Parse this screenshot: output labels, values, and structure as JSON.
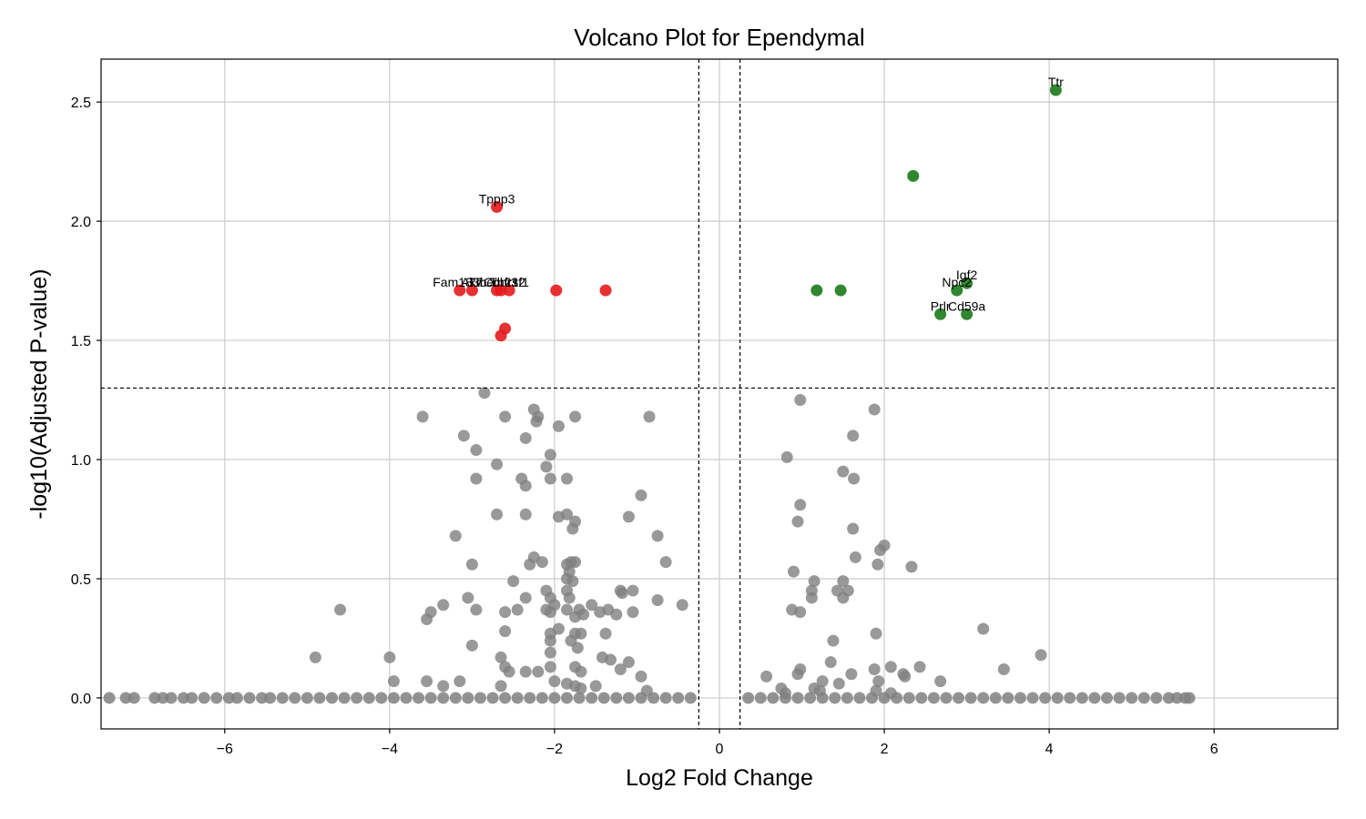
{
  "chart_data": {
    "type": "scatter",
    "title": "Volcano Plot for Ependymal",
    "xlabel": "Log2 Fold Change",
    "ylabel": "-log10(Adjusted P-value)",
    "xlim": [
      -7.5,
      7.5
    ],
    "ylim": [
      -0.13,
      2.68
    ],
    "xticks": [
      -6,
      -4,
      -2,
      0,
      2,
      4,
      6
    ],
    "xtick_labels": [
      "−6",
      "−4",
      "−2",
      "0",
      "2",
      "4",
      "6"
    ],
    "yticks": [
      0.0,
      0.5,
      1.0,
      1.5,
      2.0,
      2.5
    ],
    "ytick_labels": [
      "0.0",
      "0.5",
      "1.0",
      "1.5",
      "2.0",
      "2.5"
    ],
    "grid": true,
    "thresholds": {
      "log2fc": [
        -0.25,
        0.25
      ],
      "neg_log10_p": 1.3
    },
    "colors": {
      "down": "#e41a1c",
      "up": "#1a7a1a",
      "ns": "#808080",
      "threshold_line": "#000000"
    },
    "series": [
      {
        "key": "down",
        "points": [
          {
            "x": -2.7,
            "y": 2.06,
            "label": "Tppp3"
          },
          {
            "x": -3.15,
            "y": 1.71,
            "label": "Fam183b"
          },
          {
            "x": -3.0,
            "y": 1.71,
            "label": "Ak7"
          },
          {
            "x": -2.7,
            "y": 1.71,
            "label": "Tmem212"
          },
          {
            "x": -2.65,
            "y": 1.71,
            "label": "Cdhr3"
          },
          {
            "x": -2.55,
            "y": 1.71,
            "label": "Tnfrsf1"
          },
          {
            "x": -1.98,
            "y": 1.71
          },
          {
            "x": -1.38,
            "y": 1.71
          },
          {
            "x": -2.6,
            "y": 1.55
          },
          {
            "x": -2.65,
            "y": 1.52
          }
        ]
      },
      {
        "key": "up",
        "points": [
          {
            "x": 4.08,
            "y": 2.55,
            "label": "Ttr"
          },
          {
            "x": 2.35,
            "y": 2.19
          },
          {
            "x": 1.18,
            "y": 1.71
          },
          {
            "x": 1.47,
            "y": 1.71
          },
          {
            "x": 3.0,
            "y": 1.74,
            "label": "Igf2"
          },
          {
            "x": 2.88,
            "y": 1.71,
            "label": "Npc2"
          },
          {
            "x": 2.68,
            "y": 1.61,
            "label": "Prlr"
          },
          {
            "x": 3.0,
            "y": 1.61,
            "label": "Cd59a"
          }
        ]
      },
      {
        "key": "ns",
        "points": [
          {
            "x": -2.85,
            "y": 1.28
          },
          {
            "x": -3.6,
            "y": 1.18
          },
          {
            "x": -3.1,
            "y": 1.1
          },
          {
            "x": -2.95,
            "y": 1.04
          },
          {
            "x": -2.6,
            "y": 1.18
          },
          {
            "x": -2.25,
            "y": 1.21
          },
          {
            "x": -2.2,
            "y": 1.18
          },
          {
            "x": -2.22,
            "y": 1.16
          },
          {
            "x": -2.35,
            "y": 1.09
          },
          {
            "x": -1.95,
            "y": 1.14
          },
          {
            "x": -1.75,
            "y": 1.18
          },
          {
            "x": -2.05,
            "y": 1.02
          },
          {
            "x": -2.1,
            "y": 0.97
          },
          {
            "x": -2.7,
            "y": 0.98
          },
          {
            "x": -2.95,
            "y": 0.92
          },
          {
            "x": -2.4,
            "y": 0.92
          },
          {
            "x": -2.35,
            "y": 0.89
          },
          {
            "x": -2.05,
            "y": 0.92
          },
          {
            "x": -1.85,
            "y": 0.92
          },
          {
            "x": -0.85,
            "y": 1.18
          },
          {
            "x": -0.95,
            "y": 0.85
          },
          {
            "x": -2.7,
            "y": 0.77
          },
          {
            "x": -2.35,
            "y": 0.77
          },
          {
            "x": -1.95,
            "y": 0.76
          },
          {
            "x": -1.85,
            "y": 0.77
          },
          {
            "x": -1.75,
            "y": 0.74
          },
          {
            "x": -1.78,
            "y": 0.71
          },
          {
            "x": -1.1,
            "y": 0.76
          },
          {
            "x": -3.2,
            "y": 0.68
          },
          {
            "x": -0.75,
            "y": 0.68
          },
          {
            "x": -0.65,
            "y": 0.57
          },
          {
            "x": -3.0,
            "y": 0.56
          },
          {
            "x": -2.25,
            "y": 0.59
          },
          {
            "x": -2.15,
            "y": 0.57
          },
          {
            "x": -2.3,
            "y": 0.56
          },
          {
            "x": -1.85,
            "y": 0.56
          },
          {
            "x": -1.8,
            "y": 0.57
          },
          {
            "x": -1.75,
            "y": 0.57
          },
          {
            "x": -1.82,
            "y": 0.53
          },
          {
            "x": -1.85,
            "y": 0.5
          },
          {
            "x": -1.78,
            "y": 0.49
          },
          {
            "x": -2.5,
            "y": 0.49
          },
          {
            "x": -2.1,
            "y": 0.45
          },
          {
            "x": -1.85,
            "y": 0.45
          },
          {
            "x": -1.2,
            "y": 0.45
          },
          {
            "x": -1.05,
            "y": 0.45
          },
          {
            "x": -1.18,
            "y": 0.44
          },
          {
            "x": -3.05,
            "y": 0.42
          },
          {
            "x": -2.35,
            "y": 0.42
          },
          {
            "x": -2.05,
            "y": 0.42
          },
          {
            "x": -1.82,
            "y": 0.42
          },
          {
            "x": -0.75,
            "y": 0.41
          },
          {
            "x": -3.35,
            "y": 0.39
          },
          {
            "x": -2.0,
            "y": 0.39
          },
          {
            "x": -1.55,
            "y": 0.39
          },
          {
            "x": -0.45,
            "y": 0.39
          },
          {
            "x": -3.5,
            "y": 0.36
          },
          {
            "x": -2.95,
            "y": 0.37
          },
          {
            "x": -2.6,
            "y": 0.36
          },
          {
            "x": -2.45,
            "y": 0.37
          },
          {
            "x": -2.1,
            "y": 0.37
          },
          {
            "x": -2.05,
            "y": 0.36
          },
          {
            "x": -1.85,
            "y": 0.37
          },
          {
            "x": -1.7,
            "y": 0.37
          },
          {
            "x": -1.65,
            "y": 0.35
          },
          {
            "x": -1.45,
            "y": 0.36
          },
          {
            "x": -1.35,
            "y": 0.37
          },
          {
            "x": -1.25,
            "y": 0.35
          },
          {
            "x": -1.05,
            "y": 0.36
          },
          {
            "x": -3.55,
            "y": 0.33
          },
          {
            "x": -1.75,
            "y": 0.34
          },
          {
            "x": -2.6,
            "y": 0.28
          },
          {
            "x": -2.05,
            "y": 0.27
          },
          {
            "x": -1.95,
            "y": 0.29
          },
          {
            "x": -1.75,
            "y": 0.27
          },
          {
            "x": -1.68,
            "y": 0.27
          },
          {
            "x": -1.38,
            "y": 0.27
          },
          {
            "x": -4.6,
            "y": 0.37
          },
          {
            "x": -2.05,
            "y": 0.24
          },
          {
            "x": -1.8,
            "y": 0.24
          },
          {
            "x": -3.0,
            "y": 0.22
          },
          {
            "x": -2.05,
            "y": 0.19
          },
          {
            "x": -1.72,
            "y": 0.21
          },
          {
            "x": -2.65,
            "y": 0.17
          },
          {
            "x": -1.42,
            "y": 0.17
          },
          {
            "x": -1.32,
            "y": 0.16
          },
          {
            "x": -4.9,
            "y": 0.17
          },
          {
            "x": -4.0,
            "y": 0.17
          },
          {
            "x": -2.6,
            "y": 0.13
          },
          {
            "x": -2.55,
            "y": 0.11
          },
          {
            "x": -2.35,
            "y": 0.11
          },
          {
            "x": -2.2,
            "y": 0.11
          },
          {
            "x": -2.05,
            "y": 0.13
          },
          {
            "x": -1.75,
            "y": 0.13
          },
          {
            "x": -1.68,
            "y": 0.11
          },
          {
            "x": -1.2,
            "y": 0.12
          },
          {
            "x": -1.1,
            "y": 0.15
          },
          {
            "x": -0.95,
            "y": 0.09
          },
          {
            "x": -3.95,
            "y": 0.07
          },
          {
            "x": -3.55,
            "y": 0.07
          },
          {
            "x": -3.35,
            "y": 0.05
          },
          {
            "x": -3.15,
            "y": 0.07
          },
          {
            "x": -2.65,
            "y": 0.05
          },
          {
            "x": -2.0,
            "y": 0.07
          },
          {
            "x": -1.85,
            "y": 0.06
          },
          {
            "x": -1.75,
            "y": 0.05
          },
          {
            "x": -1.68,
            "y": 0.04
          },
          {
            "x": -1.5,
            "y": 0.05
          },
          {
            "x": -0.88,
            "y": 0.03
          },
          {
            "x": 0.98,
            "y": 1.25
          },
          {
            "x": 1.88,
            "y": 1.21
          },
          {
            "x": 1.62,
            "y": 1.1
          },
          {
            "x": 0.82,
            "y": 1.01
          },
          {
            "x": 1.5,
            "y": 0.95
          },
          {
            "x": 1.63,
            "y": 0.92
          },
          {
            "x": 0.98,
            "y": 0.81
          },
          {
            "x": 0.95,
            "y": 0.74
          },
          {
            "x": 1.62,
            "y": 0.71
          },
          {
            "x": 2.0,
            "y": 0.64
          },
          {
            "x": 1.95,
            "y": 0.62
          },
          {
            "x": 1.65,
            "y": 0.59
          },
          {
            "x": 1.92,
            "y": 0.56
          },
          {
            "x": 2.33,
            "y": 0.55
          },
          {
            "x": 0.9,
            "y": 0.53
          },
          {
            "x": 1.15,
            "y": 0.49
          },
          {
            "x": 1.5,
            "y": 0.49
          },
          {
            "x": 1.12,
            "y": 0.45
          },
          {
            "x": 1.43,
            "y": 0.45
          },
          {
            "x": 1.56,
            "y": 0.45
          },
          {
            "x": 1.12,
            "y": 0.42
          },
          {
            "x": 1.5,
            "y": 0.42
          },
          {
            "x": 0.88,
            "y": 0.37
          },
          {
            "x": 0.98,
            "y": 0.36
          },
          {
            "x": 3.2,
            "y": 0.29
          },
          {
            "x": 1.9,
            "y": 0.27
          },
          {
            "x": 1.38,
            "y": 0.24
          },
          {
            "x": 3.9,
            "y": 0.18
          },
          {
            "x": 1.35,
            "y": 0.15
          },
          {
            "x": 3.45,
            "y": 0.12
          },
          {
            "x": 0.98,
            "y": 0.12
          },
          {
            "x": 1.88,
            "y": 0.12
          },
          {
            "x": 2.08,
            "y": 0.13
          },
          {
            "x": 2.43,
            "y": 0.13
          },
          {
            "x": 2.23,
            "y": 0.1
          },
          {
            "x": 0.95,
            "y": 0.1
          },
          {
            "x": 1.6,
            "y": 0.1
          },
          {
            "x": 0.57,
            "y": 0.09
          },
          {
            "x": 2.25,
            "y": 0.09
          },
          {
            "x": 1.25,
            "y": 0.07
          },
          {
            "x": 1.93,
            "y": 0.07
          },
          {
            "x": 1.45,
            "y": 0.06
          },
          {
            "x": 2.68,
            "y": 0.07
          },
          {
            "x": 1.15,
            "y": 0.04
          },
          {
            "x": 1.22,
            "y": 0.03
          },
          {
            "x": 1.9,
            "y": 0.03
          },
          {
            "x": 2.08,
            "y": 0.02
          },
          {
            "x": 0.75,
            "y": 0.04
          },
          {
            "x": 0.8,
            "y": 0.02
          }
        ]
      }
    ],
    "zero_band": {
      "y": 0.0,
      "x": [
        -7.4,
        -7.2,
        -7.1,
        -6.85,
        -6.75,
        -6.65,
        -6.5,
        -6.4,
        -6.25,
        -6.1,
        -5.95,
        -5.85,
        -5.7,
        -5.55,
        -5.45,
        -5.3,
        -5.15,
        -5.0,
        -4.85,
        -4.7,
        -4.55,
        -4.4,
        -4.25,
        -4.1,
        -3.95,
        -3.8,
        -3.65,
        -3.5,
        -3.35,
        -3.2,
        -3.05,
        -2.9,
        -2.75,
        -2.6,
        -2.45,
        -2.3,
        -2.15,
        -2.0,
        -1.85,
        -1.7,
        -1.55,
        -1.4,
        -1.25,
        -1.1,
        -0.95,
        -0.8,
        -0.65,
        -0.5,
        -0.35,
        0.35,
        0.5,
        0.65,
        0.8,
        0.95,
        1.1,
        1.25,
        1.4,
        1.55,
        1.7,
        1.85,
        2.0,
        2.15,
        2.3,
        2.45,
        2.6,
        2.75,
        2.9,
        3.05,
        3.2,
        3.35,
        3.5,
        3.65,
        3.8,
        3.95,
        4.1,
        4.25,
        4.4,
        4.55,
        4.7,
        4.85,
        5.0,
        5.15,
        5.3,
        5.45,
        5.55,
        5.65,
        5.7
      ]
    }
  }
}
